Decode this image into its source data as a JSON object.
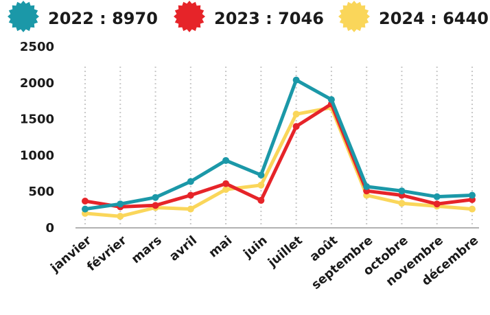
{
  "chart_data": {
    "type": "line",
    "categories": [
      "janvier",
      "février",
      "mars",
      "avril",
      "mai",
      "juin",
      "juillet",
      "août",
      "septembre",
      "octobre",
      "novembre",
      "décembre"
    ],
    "series": [
      {
        "name": "2022 : 8970",
        "color": "#1b98a8",
        "icon": "badge-icon",
        "values": [
          250,
          320,
          410,
          630,
          920,
          720,
          2030,
          1760,
          560,
          500,
          420,
          440
        ]
      },
      {
        "name": "2023 : 7046",
        "color": "#e62429",
        "icon": "badge-icon",
        "values": [
          360,
          280,
          300,
          440,
          600,
          370,
          1390,
          1700,
          500,
          440,
          320,
          380
        ]
      },
      {
        "name": "2024 : 6440",
        "color": "#fad65a",
        "icon": "badge-icon",
        "values": [
          190,
          150,
          270,
          250,
          520,
          580,
          1560,
          1650,
          440,
          330,
          290,
          250
        ]
      }
    ],
    "ylim": [
      0,
      2500
    ],
    "yticks": [
      0,
      500,
      1000,
      1500,
      2000,
      2500
    ],
    "grid": "vertical-dotted",
    "legend": "top"
  }
}
